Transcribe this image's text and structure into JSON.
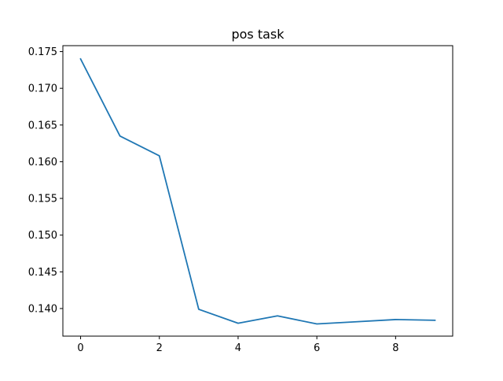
{
  "chart_data": {
    "type": "line",
    "title": "pos task",
    "xlabel": "",
    "ylabel": "",
    "xlim": [
      -0.45,
      9.45
    ],
    "ylim": [
      0.13624,
      0.17581
    ],
    "xticks": [
      0,
      2,
      4,
      6,
      8
    ],
    "xtick_labels": [
      "0",
      "2",
      "4",
      "6",
      "8"
    ],
    "yticks": [
      0.14,
      0.145,
      0.15,
      0.155,
      0.16,
      0.165,
      0.17,
      0.175
    ],
    "ytick_labels": [
      "0.140",
      "0.145",
      "0.150",
      "0.155",
      "0.160",
      "0.165",
      "0.170",
      "0.175"
    ],
    "grid": false,
    "legend": "none",
    "series": [
      {
        "color": "#1f77b4",
        "x": [
          0,
          1,
          2,
          3,
          4,
          5,
          6,
          7,
          8,
          9
        ],
        "y": [
          0.174,
          0.1635,
          0.1608,
          0.1399,
          0.138,
          0.139,
          0.1379,
          0.1382,
          0.1385,
          0.1384
        ]
      }
    ]
  }
}
